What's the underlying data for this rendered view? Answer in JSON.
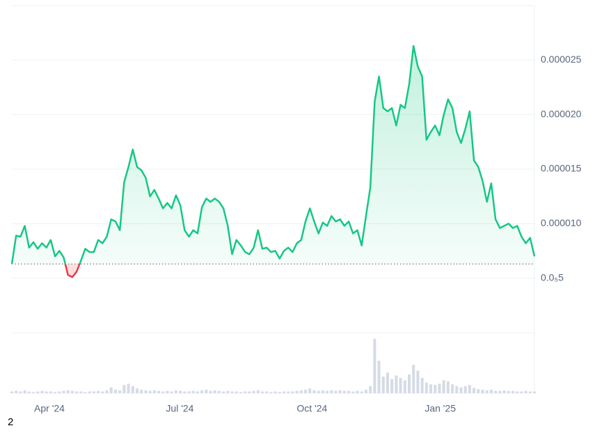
{
  "chart_data": {
    "type": "area",
    "values": [
      6.3e-06,
      8.9e-06,
      8.8e-06,
      9.8e-06,
      7.8e-06,
      8.3e-06,
      7.7e-06,
      8.2e-06,
      7.8e-06,
      8.5e-06,
      7e-06,
      7.5e-06,
      6.9e-06,
      5.3e-06,
      5.1e-06,
      5.6e-06,
      6.6e-06,
      7.7e-06,
      7.4e-06,
      7.4e-06,
      8.5e-06,
      8.2e-06,
      8.8e-06,
      1.04e-05,
      1.02e-05,
      9.4e-06,
      1.38e-05,
      1.52e-05,
      1.68e-05,
      1.52e-05,
      1.49e-05,
      1.42e-05,
      1.25e-05,
      1.31e-05,
      1.23e-05,
      1.14e-05,
      1.19e-05,
      1.14e-05,
      1.26e-05,
      1.17e-05,
      9.4e-06,
      8.8e-06,
      9.4e-06,
      9.1e-06,
      1.15e-05,
      1.23e-05,
      1.2e-05,
      1.23e-05,
      1.2e-05,
      1.14e-05,
      9.8e-06,
      7.2e-06,
      8.5e-06,
      8e-06,
      7.4e-06,
      7.2e-06,
      7.8e-06,
      9.4e-06,
      7.7e-06,
      7.8e-06,
      7.4e-06,
      7.5e-06,
      6.8e-06,
      7.5e-06,
      7.8e-06,
      7.4e-06,
      8.2e-06,
      8.5e-06,
      1.02e-05,
      1.14e-05,
      1.02e-05,
      9.1e-06,
      1.01e-05,
      9.8e-06,
      1.07e-05,
      1.02e-05,
      1.04e-05,
      9.8e-06,
      1.02e-05,
      9.1e-06,
      9.4e-06,
      8e-06,
      1.07e-05,
      1.33e-05,
      2.12e-05,
      2.35e-05,
      2.06e-05,
      2.03e-05,
      2.06e-05,
      1.9e-05,
      2.09e-05,
      2.06e-05,
      2.28e-05,
      2.63e-05,
      2.44e-05,
      2.35e-05,
      1.77e-05,
      1.84e-05,
      1.9e-05,
      1.81e-05,
      2e-05,
      2.14e-05,
      2.06e-05,
      1.84e-05,
      1.74e-05,
      1.87e-05,
      2.03e-05,
      1.58e-05,
      1.52e-05,
      1.39e-05,
      1.2e-05,
      1.37e-05,
      1.04e-05,
      9.6e-06,
      9.8e-06,
      1e-05,
      9.6e-06,
      9.8e-06,
      8.8e-06,
      8.2e-06,
      8.7e-06,
      7e-06
    ],
    "color": "#16c784",
    "negative_color": "#ea3943",
    "volume": [
      3,
      4,
      3,
      5,
      3,
      2,
      3,
      4,
      3,
      3,
      2,
      3,
      4,
      5,
      4,
      3,
      3,
      2,
      3,
      3,
      4,
      3,
      5,
      10,
      6,
      5,
      14,
      16,
      12,
      8,
      6,
      5,
      4,
      5,
      4,
      3,
      4,
      3,
      5,
      4,
      3,
      3,
      4,
      3,
      5,
      6,
      4,
      5,
      4,
      3,
      4,
      3,
      3,
      2,
      3,
      3,
      4,
      5,
      3,
      3,
      2,
      3,
      2,
      3,
      3,
      3,
      4,
      5,
      6,
      8,
      5,
      4,
      5,
      4,
      5,
      4,
      5,
      4,
      4,
      3,
      4,
      3,
      6,
      12,
      92,
      55,
      28,
      35,
      24,
      30,
      26,
      22,
      32,
      48,
      38,
      26,
      18,
      15,
      14,
      16,
      22,
      20,
      15,
      12,
      10,
      12,
      14,
      9,
      7,
      6,
      5,
      6,
      4,
      4,
      5,
      4,
      4,
      3,
      3,
      4,
      3,
      3
    ],
    "volume_color": "#d5dbe6",
    "volume_ylim": [
      0,
      100
    ],
    "xlim": [
      0,
      121
    ],
    "xticks": [
      {
        "value": 8.7,
        "label": "Apr '24"
      },
      {
        "value": 38.9,
        "label": "Jul '24"
      },
      {
        "value": 69.5,
        "label": "Oct '24"
      },
      {
        "value": 99.2,
        "label": "Jan '25"
      }
    ],
    "ylim": [
      0,
      3e-05
    ],
    "yticks": [
      {
        "value": 5e-06,
        "label": "0.0₅5"
      },
      {
        "value": 1e-05,
        "label": "0.000010"
      },
      {
        "value": 1.5e-05,
        "label": "0.000015"
      },
      {
        "value": 2e-05,
        "label": "0.000020"
      },
      {
        "value": 2.5e-05,
        "label": "0.000025"
      }
    ],
    "grid": true,
    "watermark": "2"
  }
}
